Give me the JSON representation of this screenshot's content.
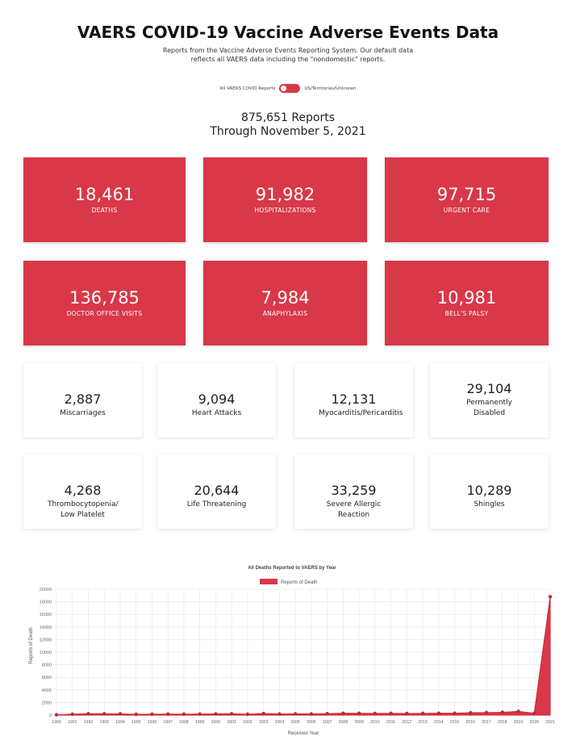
{
  "header": {
    "title": "VAERS COVID-19 Vaccine Adverse Events Data",
    "subtitle_line1": "Reports from the Vaccine Adverse Events Reporting System. Our default data",
    "subtitle_line2": "reflects all VAERS data including the \"nondomestic\" reports."
  },
  "toggle": {
    "left_label": "All VAERS COVID Reports",
    "right_label": "US/Territories/Unknown"
  },
  "summary": {
    "reports": "875,651 Reports",
    "through": "Through November 5, 2021"
  },
  "red_cards": [
    {
      "value": "18,461",
      "label": "DEATHS"
    },
    {
      "value": "91,982",
      "label": "HOSPITALIZATIONS"
    },
    {
      "value": "97,715",
      "label": "URGENT CARE"
    },
    {
      "value": "136,785",
      "label": "DOCTOR OFFICE VISITS"
    },
    {
      "value": "7,984",
      "label": "ANAPHYLAXIS"
    },
    {
      "value": "10,981",
      "label": "BELL'S PALSY"
    }
  ],
  "white_cards": [
    {
      "value": "2,887",
      "label": "Miscarriages"
    },
    {
      "value": "9,094",
      "label": "Heart Attacks"
    },
    {
      "value": "12,131",
      "label": "Myocarditis/Pericarditis"
    },
    {
      "value": "29,104",
      "label": "Permanently Disabled"
    },
    {
      "value": "4,268",
      "label": "Thrombocytopenia/ Low Platelet"
    },
    {
      "value": "20,644",
      "label": "Life Threatening"
    },
    {
      "value": "33,259",
      "label": "Severe Allergic Reaction"
    },
    {
      "value": "10,289",
      "label": "Shingles"
    }
  ],
  "colors": {
    "accent": "#d93848"
  },
  "chart_data": {
    "type": "area",
    "title": "All Deaths Reported to VAERS by Year",
    "legend": "Reports of Death",
    "legend_position": "top-center",
    "xlabel": "Received Year",
    "ylabel": "Reports of Death",
    "ylim": [
      0,
      20000
    ],
    "yticks": [
      "0",
      "2000",
      "4000",
      "6000",
      "8000",
      "10000",
      "12000",
      "14000",
      "16000",
      "18000",
      "20000"
    ],
    "x": [
      "1990",
      "1991",
      "1992",
      "1993",
      "1994",
      "1995",
      "1996",
      "1997",
      "1998",
      "1999",
      "2000",
      "2001",
      "2002",
      "2003",
      "2004",
      "2005",
      "2006",
      "2007",
      "2008",
      "2009",
      "2010",
      "2011",
      "2012",
      "2013",
      "2014",
      "2015",
      "2016",
      "2017",
      "2018",
      "2019",
      "2020",
      "2021"
    ],
    "values": [
      50,
      150,
      220,
      210,
      200,
      130,
      150,
      160,
      150,
      170,
      190,
      210,
      150,
      250,
      180,
      200,
      190,
      230,
      300,
      290,
      270,
      280,
      260,
      280,
      300,
      300,
      380,
      400,
      450,
      600,
      300,
      18800
    ]
  }
}
